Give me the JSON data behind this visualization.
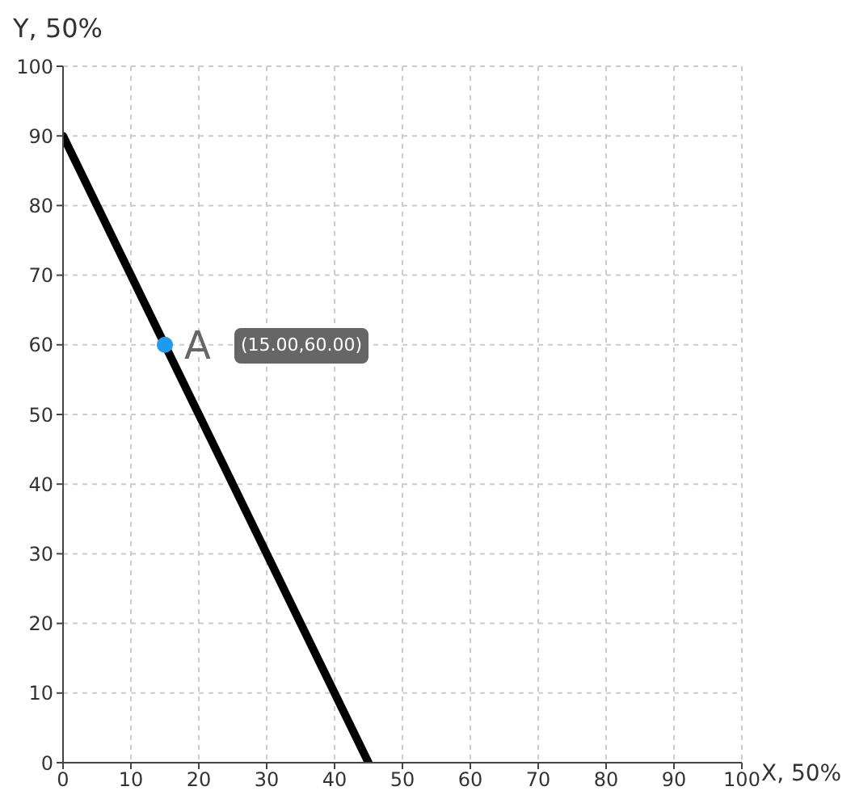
{
  "chart_data": {
    "type": "line",
    "xlabel": "X, 50%",
    "ylabel": "Y, 50%",
    "xlim": [
      0,
      100
    ],
    "ylim": [
      0,
      100
    ],
    "xticks": [
      0,
      10,
      20,
      30,
      40,
      50,
      60,
      70,
      80,
      90,
      100
    ],
    "yticks": [
      0,
      10,
      20,
      30,
      40,
      50,
      60,
      70,
      80,
      90,
      100
    ],
    "grid": true,
    "series": [
      {
        "x": [
          0,
          45
        ],
        "values": [
          90,
          0
        ],
        "color": "#000000",
        "marker": "none"
      },
      {
        "type": "scatter",
        "name": "A",
        "x": [
          15
        ],
        "values": [
          60
        ],
        "color": "#1e9bf0",
        "marker": "circle"
      }
    ],
    "annotations": [
      "(15.00,60.00)"
    ]
  }
}
